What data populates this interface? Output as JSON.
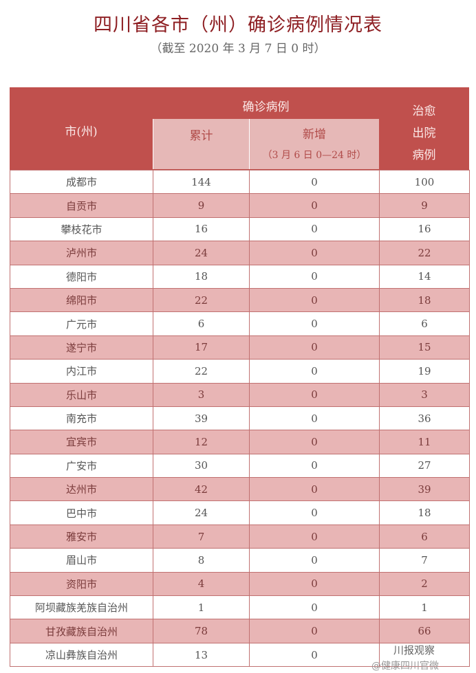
{
  "title": "四川省各市（州）确诊病例情况表",
  "subtitle": "（截至 2020 年 3 月 7 日 0 时）",
  "header": {
    "city": "市(州)",
    "confirmed": "确诊病例",
    "cumulative": "累计",
    "new": "新增",
    "new_period": "（3 月 6 日 0—24 时）",
    "recovered_1": "治愈",
    "recovered_2": "出院",
    "recovered_3": "病例"
  },
  "rows": [
    {
      "city": "成都市",
      "cumulative": "144",
      "new": "0",
      "recovered": "100"
    },
    {
      "city": "自贡市",
      "cumulative": "9",
      "new": "0",
      "recovered": "9"
    },
    {
      "city": "攀枝花市",
      "cumulative": "16",
      "new": "0",
      "recovered": "16"
    },
    {
      "city": "泸州市",
      "cumulative": "24",
      "new": "0",
      "recovered": "22"
    },
    {
      "city": "德阳市",
      "cumulative": "18",
      "new": "0",
      "recovered": "14"
    },
    {
      "city": "绵阳市",
      "cumulative": "22",
      "new": "0",
      "recovered": "18"
    },
    {
      "city": "广元市",
      "cumulative": "6",
      "new": "0",
      "recovered": "6"
    },
    {
      "city": "遂宁市",
      "cumulative": "17",
      "new": "0",
      "recovered": "15"
    },
    {
      "city": "内江市",
      "cumulative": "22",
      "new": "0",
      "recovered": "19"
    },
    {
      "city": "乐山市",
      "cumulative": "3",
      "new": "0",
      "recovered": "3"
    },
    {
      "city": "南充市",
      "cumulative": "39",
      "new": "0",
      "recovered": "36"
    },
    {
      "city": "宜宾市",
      "cumulative": "12",
      "new": "0",
      "recovered": "11"
    },
    {
      "city": "广安市",
      "cumulative": "30",
      "new": "0",
      "recovered": "27"
    },
    {
      "city": "达州市",
      "cumulative": "42",
      "new": "0",
      "recovered": "39"
    },
    {
      "city": "巴中市",
      "cumulative": "24",
      "new": "0",
      "recovered": "18"
    },
    {
      "city": "雅安市",
      "cumulative": "7",
      "new": "0",
      "recovered": "6"
    },
    {
      "city": "眉山市",
      "cumulative": "8",
      "new": "0",
      "recovered": "7"
    },
    {
      "city": "资阳市",
      "cumulative": "4",
      "new": "0",
      "recovered": "2"
    },
    {
      "city": "阿坝藏族羌族自治州",
      "cumulative": "1",
      "new": "0",
      "recovered": "1"
    },
    {
      "city": "甘孜藏族自治州",
      "cumulative": "78",
      "new": "0",
      "recovered": "66"
    },
    {
      "city": "凉山彝族自治州",
      "cumulative": "13",
      "new": "0",
      "recovered": ""
    }
  ],
  "watermarks": {
    "wechat": "川报观察",
    "weibo": "@健康四川官微"
  }
}
